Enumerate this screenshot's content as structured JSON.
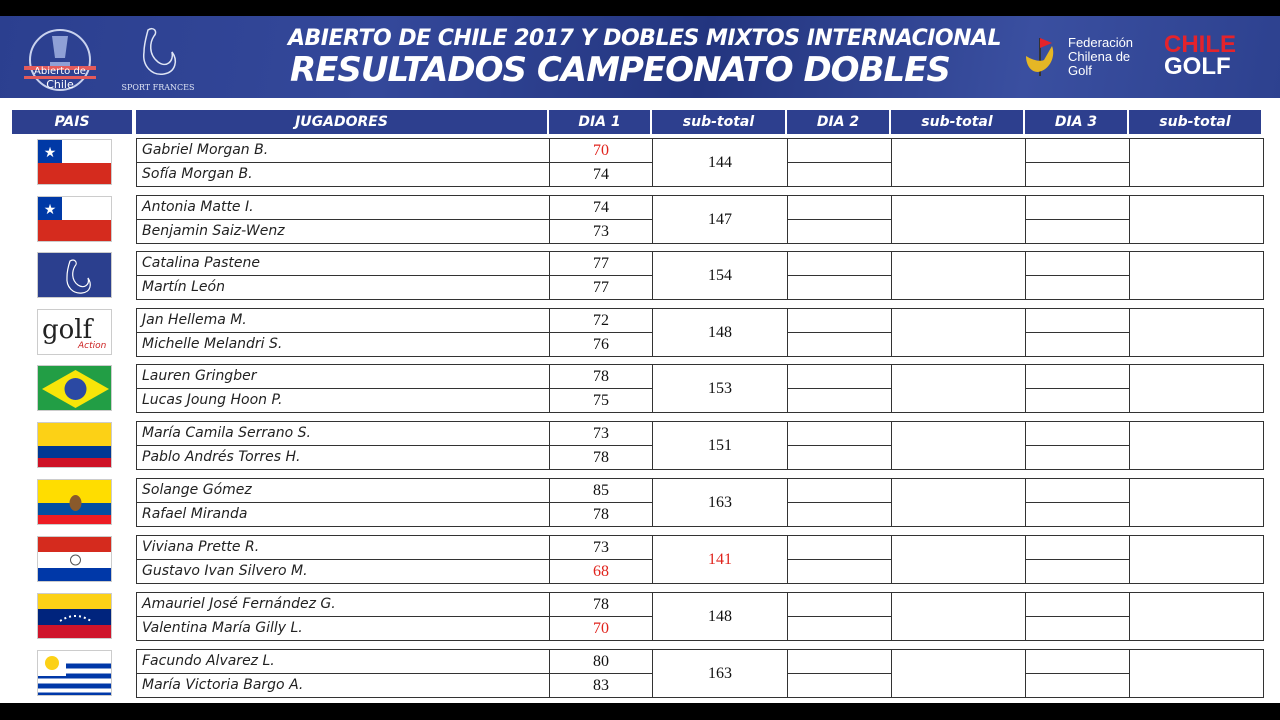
{
  "banner": {
    "title_line1": "ABIERTO DE CHILE 2017  Y  DOBLES MIXTOS INTERNACIONAL",
    "title_line2": "RESULTADOS CAMPEONATO DOBLES",
    "logos": {
      "abierto": "Abierto de 2017 Chile",
      "sport_frances": "SPORT FRANCES",
      "federacion": "Federación Chilena de Golf",
      "chile_golf": [
        "CHILE",
        "GOLF"
      ]
    }
  },
  "colors": {
    "header_blue": "#2d3f8e",
    "highlight_red": "#e0231c"
  },
  "columns": [
    "PAIS",
    "JUGADORES",
    "DIA 1",
    "sub-total",
    "DIA 2",
    "sub-total",
    "DIA 3",
    "sub-total"
  ],
  "teams": [
    {
      "country": "chile-flag",
      "players": [
        "Gabriel Morgan B.",
        "Sofía Morgan B."
      ],
      "dia1": [
        "70",
        "74"
      ],
      "dia1_red": [
        true,
        false
      ],
      "subtotal": "144",
      "subtotal_red": false
    },
    {
      "country": "chile-flag",
      "players": [
        "Antonia Matte I.",
        "Benjamin Saiz-Wenz"
      ],
      "dia1": [
        "74",
        "73"
      ],
      "dia1_red": [
        false,
        false
      ],
      "subtotal": "147",
      "subtotal_red": false
    },
    {
      "country": "sport-frances-logo",
      "players": [
        "Catalina Pastene",
        "Martín León"
      ],
      "dia1": [
        "77",
        "77"
      ],
      "dia1_red": [
        false,
        false
      ],
      "subtotal": "154",
      "subtotal_red": false
    },
    {
      "country": "golf-action-logo",
      "players": [
        "Jan Hellema M.",
        "Michelle Melandri S."
      ],
      "dia1": [
        "72",
        "76"
      ],
      "dia1_red": [
        false,
        false
      ],
      "subtotal": "148",
      "subtotal_red": false
    },
    {
      "country": "brazil-flag",
      "players": [
        "Lauren Gringber",
        "Lucas Joung Hoon P."
      ],
      "dia1": [
        "78",
        "75"
      ],
      "dia1_red": [
        false,
        false
      ],
      "subtotal": "153",
      "subtotal_red": false
    },
    {
      "country": "colombia-flag",
      "players": [
        "María Camila Serrano S.",
        "Pablo Andrés Torres H."
      ],
      "dia1": [
        "73",
        "78"
      ],
      "dia1_red": [
        false,
        false
      ],
      "subtotal": "151",
      "subtotal_red": false
    },
    {
      "country": "ecuador-flag",
      "players": [
        "Solange Gómez",
        "Rafael Miranda"
      ],
      "dia1": [
        "85",
        "78"
      ],
      "dia1_red": [
        false,
        false
      ],
      "subtotal": "163",
      "subtotal_red": false
    },
    {
      "country": "paraguay-flag",
      "players": [
        "Viviana Prette R.",
        "Gustavo Ivan Silvero M."
      ],
      "dia1": [
        "73",
        "68"
      ],
      "dia1_red": [
        false,
        true
      ],
      "subtotal": "141",
      "subtotal_red": true
    },
    {
      "country": "venezuela-flag",
      "players": [
        "Amauriel José Fernández G.",
        "Valentina María Gilly L."
      ],
      "dia1": [
        "78",
        "70"
      ],
      "dia1_red": [
        false,
        true
      ],
      "subtotal": "148",
      "subtotal_red": false
    },
    {
      "country": "uruguay-flag",
      "players": [
        "Facundo Alvarez L.",
        "María Victoria Bargo A."
      ],
      "dia1": [
        "80",
        "83"
      ],
      "dia1_red": [
        false,
        false
      ],
      "subtotal": "163",
      "subtotal_red": false
    }
  ]
}
